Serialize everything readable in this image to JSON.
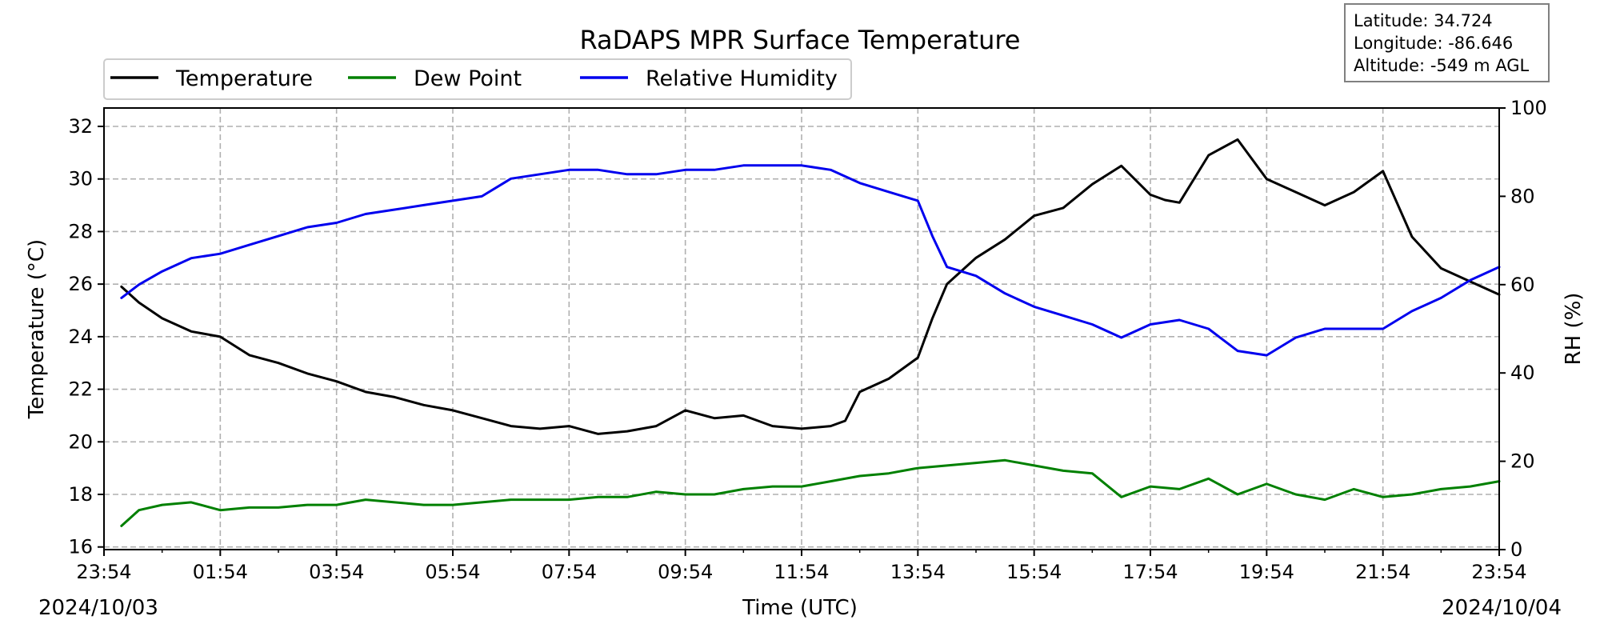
{
  "chart_data": {
    "type": "line",
    "title": "RaDAPS MPR Surface Temperature",
    "xlabel": "Time (UTC)",
    "ylabel_left": "Temperature (°C)",
    "ylabel_right": "RH (%)",
    "x_unit": "hours since 2024/10/03 23:54 UTC",
    "xlim": [
      0,
      24
    ],
    "x_ticks": [
      0,
      2,
      4,
      6,
      8,
      10,
      12,
      14,
      16,
      18,
      20,
      22,
      24
    ],
    "x_tick_labels": [
      "23:54",
      "01:54",
      "03:54",
      "05:54",
      "07:54",
      "09:54",
      "11:54",
      "13:54",
      "15:54",
      "17:54",
      "19:54",
      "21:54",
      "23:54"
    ],
    "date_start": "2024/10/03",
    "date_end": "2024/10/04",
    "ylim_left": [
      15.9,
      32.7
    ],
    "y_ticks_left": [
      16,
      18,
      20,
      22,
      24,
      26,
      28,
      30,
      32
    ],
    "ylim_right": [
      0,
      100
    ],
    "y_ticks_right": [
      0,
      20,
      40,
      60,
      80,
      100
    ],
    "grid": true,
    "legend_position": "top-left",
    "info_box": {
      "latitude": "Latitude: 34.724",
      "longitude": "Longitude: -86.646",
      "altitude": "Altitude: -549 m AGL"
    },
    "series": [
      {
        "name": "Temperature",
        "axis": "left",
        "color": "#000000",
        "x": [
          0.3,
          0.6,
          1.0,
          1.5,
          2.0,
          2.5,
          3.0,
          3.5,
          4.0,
          4.5,
          5.0,
          5.5,
          6.0,
          6.5,
          7.0,
          7.5,
          8.0,
          8.5,
          9.0,
          9.5,
          10.0,
          10.5,
          11.0,
          11.5,
          12.0,
          12.5,
          12.75,
          13.0,
          13.5,
          14.0,
          14.25,
          14.5,
          15.0,
          15.5,
          16.0,
          16.5,
          17.0,
          17.5,
          18.0,
          18.25,
          18.5,
          19.0,
          19.5,
          20.0,
          20.5,
          21.0,
          21.5,
          22.0,
          22.5,
          23.0,
          23.5,
          24.0
        ],
        "values": [
          25.9,
          25.3,
          24.7,
          24.2,
          24.0,
          23.3,
          23.0,
          22.6,
          22.3,
          21.9,
          21.7,
          21.4,
          21.2,
          20.9,
          20.6,
          20.5,
          20.6,
          20.3,
          20.4,
          20.6,
          21.2,
          20.9,
          21.0,
          20.6,
          20.5,
          20.6,
          20.8,
          21.9,
          22.4,
          23.2,
          24.7,
          26.0,
          27.0,
          27.7,
          28.6,
          28.9,
          29.8,
          30.5,
          29.4,
          29.2,
          29.1,
          30.9,
          31.5,
          30.0,
          29.5,
          29.0,
          29.5,
          30.3,
          27.8,
          26.6,
          26.1,
          25.6
        ]
      },
      {
        "name": "Dew Point",
        "axis": "left",
        "color": "#008000",
        "x": [
          0.3,
          0.6,
          1.0,
          1.5,
          2.0,
          2.5,
          3.0,
          3.5,
          4.0,
          4.5,
          5.0,
          5.5,
          6.0,
          6.5,
          7.0,
          7.5,
          8.0,
          8.5,
          9.0,
          9.5,
          10.0,
          10.5,
          11.0,
          11.5,
          12.0,
          12.5,
          13.0,
          13.5,
          14.0,
          14.5,
          15.0,
          15.5,
          16.0,
          16.5,
          17.0,
          17.5,
          18.0,
          18.5,
          19.0,
          19.5,
          20.0,
          20.5,
          21.0,
          21.5,
          22.0,
          22.5,
          23.0,
          23.5,
          24.0
        ],
        "values": [
          16.8,
          17.4,
          17.6,
          17.7,
          17.4,
          17.5,
          17.5,
          17.6,
          17.6,
          17.8,
          17.7,
          17.6,
          17.6,
          17.7,
          17.8,
          17.8,
          17.8,
          17.9,
          17.9,
          18.1,
          18.0,
          18.0,
          18.2,
          18.3,
          18.3,
          18.5,
          18.7,
          18.8,
          19.0,
          19.1,
          19.2,
          19.3,
          19.1,
          18.9,
          18.8,
          17.9,
          18.3,
          18.2,
          18.6,
          18.0,
          18.4,
          18.0,
          17.8,
          18.2,
          17.9,
          18.0,
          18.2,
          18.3,
          18.5
        ]
      },
      {
        "name": "Relative Humidity",
        "axis": "right",
        "color": "#0000ee",
        "x": [
          0.3,
          0.6,
          1.0,
          1.5,
          2.0,
          2.5,
          3.0,
          3.5,
          4.0,
          4.5,
          5.0,
          5.5,
          6.0,
          6.5,
          7.0,
          7.5,
          8.0,
          8.5,
          9.0,
          9.5,
          10.0,
          10.5,
          11.0,
          11.5,
          12.0,
          12.5,
          13.0,
          13.5,
          14.0,
          14.25,
          14.5,
          15.0,
          15.5,
          16.0,
          16.5,
          17.0,
          17.5,
          18.0,
          18.5,
          19.0,
          19.5,
          20.0,
          20.5,
          21.0,
          21.5,
          22.0,
          22.5,
          23.0,
          23.5,
          24.0
        ],
        "values": [
          57,
          60,
          63,
          66,
          67,
          69,
          71,
          73,
          74,
          76,
          77,
          78,
          79,
          80,
          84,
          85,
          86,
          86,
          85,
          85,
          86,
          86,
          87,
          87,
          87,
          86,
          83,
          81,
          79,
          71,
          64,
          62,
          58,
          55,
          53,
          51,
          48,
          51,
          52,
          50,
          45,
          44,
          48,
          50,
          50,
          50,
          54,
          57,
          61,
          64
        ]
      }
    ]
  }
}
